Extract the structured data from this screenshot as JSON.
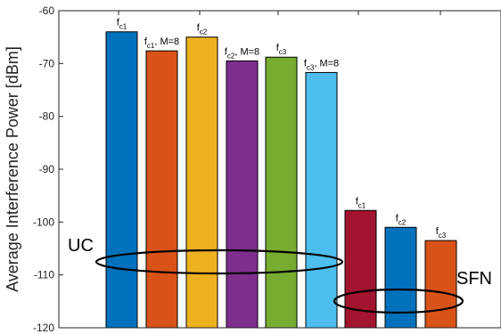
{
  "chart_data": {
    "type": "bar",
    "title": "",
    "xlabel": "",
    "ylabel": "Average Interference Power [dBm]",
    "ylim": [
      -120,
      -60
    ],
    "yticks": [
      -60,
      -70,
      -80,
      -90,
      -100,
      -110,
      -120
    ],
    "grid": false,
    "bars": [
      {
        "label": {
          "base": "f",
          "sub": "c1",
          "suffix": ""
        },
        "value": -64,
        "color": "#0072BD"
      },
      {
        "label": {
          "base": "f",
          "sub": "c1",
          "suffix": ", M=8"
        },
        "value": -67.6,
        "color": "#D95319"
      },
      {
        "label": {
          "base": "f",
          "sub": "c2",
          "suffix": ""
        },
        "value": -65,
        "color": "#EDB120"
      },
      {
        "label": {
          "base": "f",
          "sub": "c2",
          "suffix": ", M=8"
        },
        "value": -69.5,
        "color": "#7E2F8E"
      },
      {
        "label": {
          "base": "f",
          "sub": "c3",
          "suffix": ""
        },
        "value": -68.8,
        "color": "#77AC30"
      },
      {
        "label": {
          "base": "f",
          "sub": "c3",
          "suffix": ", M=8"
        },
        "value": -71.7,
        "color": "#4DBEEE"
      },
      {
        "label": {
          "base": "f",
          "sub": "c1",
          "suffix": ""
        },
        "value": -97.8,
        "color": "#A2142F"
      },
      {
        "label": {
          "base": "f",
          "sub": "c2",
          "suffix": ""
        },
        "value": -101,
        "color": "#0072BD"
      },
      {
        "label": {
          "base": "f",
          "sub": "c3",
          "suffix": ""
        },
        "value": -103.5,
        "color": "#D95319"
      }
    ],
    "annotations": [
      {
        "text": "UC"
      },
      {
        "text": "SFN"
      }
    ]
  }
}
